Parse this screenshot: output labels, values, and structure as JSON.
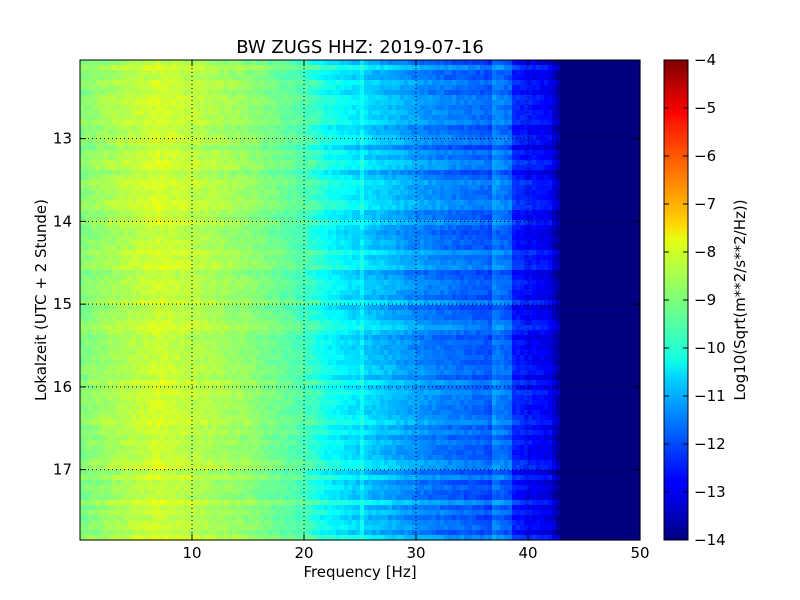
{
  "chart_data": {
    "type": "heatmap",
    "title": "BW ZUGS HHZ: 2019-07-16",
    "xlabel": "Frequency [Hz]",
    "ylabel": "Lokalzeit (UTC + 2 Stunde)",
    "colorbar_label": "Log10(Sqrt(m**2/s**2/Hz))",
    "colormap": "jet",
    "xlim": [
      0,
      50
    ],
    "ylim": [
      12.05,
      17.85
    ],
    "y_inverted": true,
    "x_ticks": [
      10,
      20,
      30,
      40,
      50
    ],
    "y_ticks": [
      13,
      14,
      15,
      16,
      17
    ],
    "colorbar_range": [
      -14,
      -4
    ],
    "colorbar_ticks": [
      -4,
      -5,
      -6,
      -7,
      -8,
      -9,
      -10,
      -11,
      -12,
      -13,
      -14
    ],
    "grid": true,
    "spectrum_profile": {
      "frequency": [
        0,
        3,
        7,
        10,
        15,
        20,
        22,
        25,
        28,
        30,
        33,
        36,
        38,
        40,
        42,
        43,
        50
      ],
      "value": [
        -9.0,
        -8.6,
        -8.2,
        -8.4,
        -8.8,
        -9.5,
        -10.1,
        -10.6,
        -11.0,
        -11.3,
        -11.6,
        -11.8,
        -12.3,
        -12.6,
        -12.9,
        -14,
        -14
      ]
    }
  }
}
